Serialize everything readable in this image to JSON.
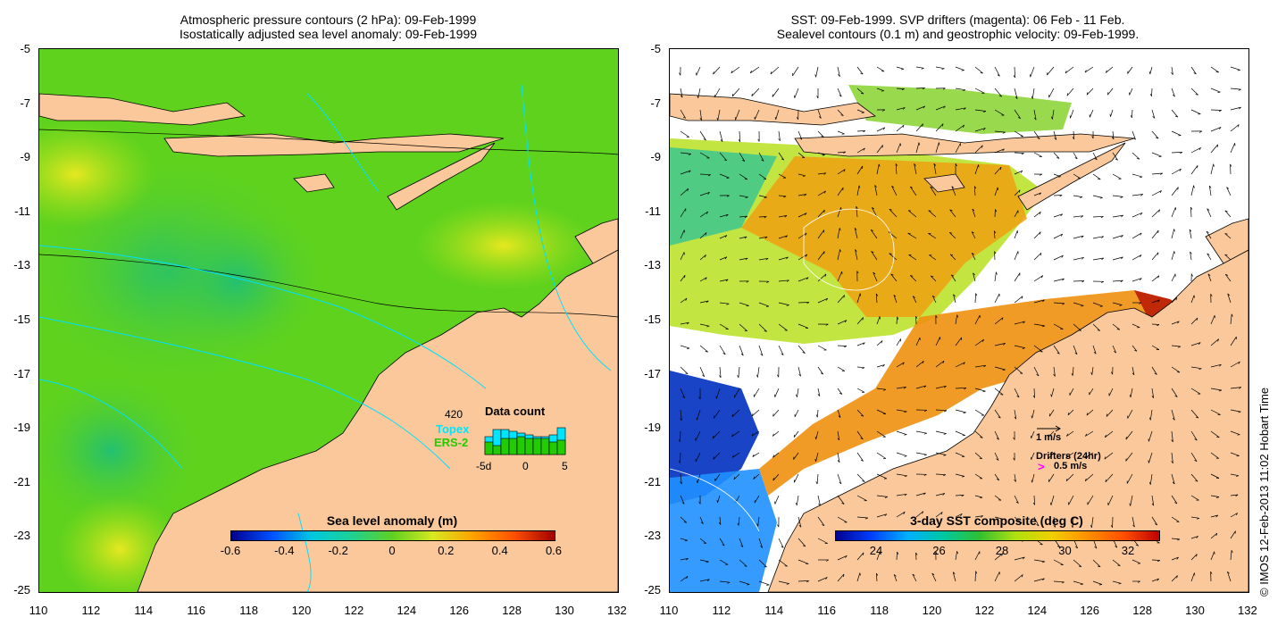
{
  "left_panel": {
    "title_line1": "Atmospheric pressure contours (2 hPa): 09-Feb-1999",
    "title_line2": "Isostatically adjusted sea level anomaly: 09-Feb-1999",
    "colorbar_label": "Sea level anomaly (m)",
    "colorbar_ticks": [
      "-0.6",
      "-0.4",
      "-0.2",
      "0",
      "0.2",
      "0.4",
      "0.6"
    ],
    "data_count": {
      "title": "Data count",
      "max_label": "420",
      "legend_topex": "Topex",
      "legend_ers2": "ERS-2",
      "axis_ticks": [
        "-5d",
        "0",
        "5"
      ],
      "topex_color": "#00e5ff",
      "ers2_color": "#22cc00"
    }
  },
  "right_panel": {
    "title_line1": "SST: 09-Feb-1999. SVP drifters (magenta): 06 Feb - 11 Feb.",
    "title_line2": "Sealevel contours (0.1 m) and geostrophic velocity: 09-Feb-1999.",
    "colorbar_label": "3-day SST composite (deg C)",
    "colorbar_ticks": [
      "24",
      "26",
      "28",
      "30",
      "32"
    ],
    "velocity_scale_label": "1 m/s",
    "drifters_label": "Drifters (24hr)",
    "drifter_speed_label": "0.5 m/s",
    "drifter_color": "#ff00ff"
  },
  "axes": {
    "y_ticks": [
      "-5",
      "-7",
      "-9",
      "-11",
      "-13",
      "-15",
      "-17",
      "-19",
      "-21",
      "-23",
      "-25"
    ],
    "x_ticks": [
      "110",
      "112",
      "114",
      "116",
      "118",
      "120",
      "122",
      "124",
      "126",
      "128",
      "130",
      "132"
    ]
  },
  "credit": "© IMOS 12-Feb-2013 11:02 Hobart Time",
  "colors": {
    "land": "#fac89a",
    "sea_green": "#5fd21e",
    "contour_cyan": "#00e0ff"
  }
}
